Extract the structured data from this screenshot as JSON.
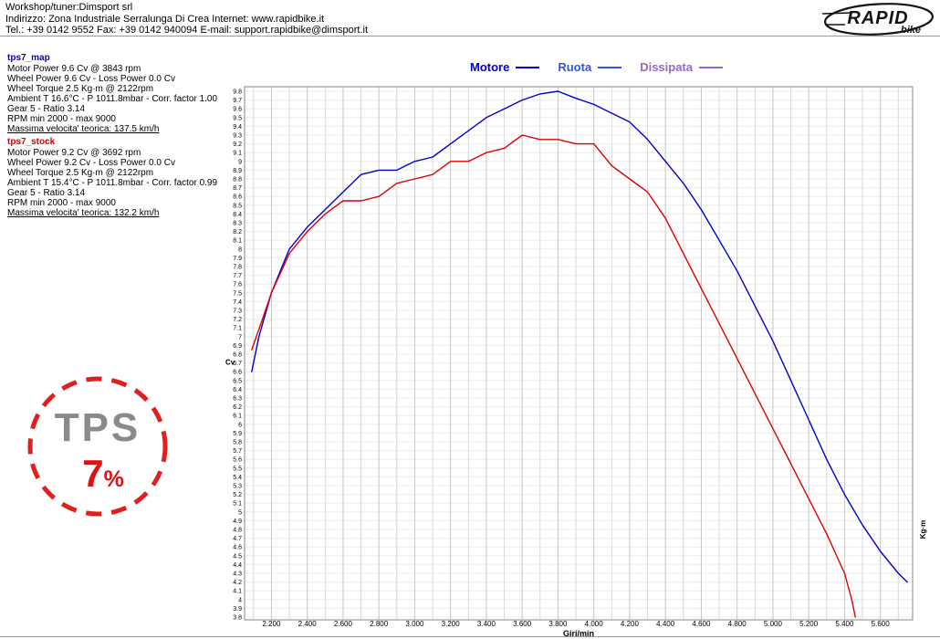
{
  "header": {
    "line1": "Workshop/tuner:Dimsport srl",
    "line2": "Indirizzo: Zona Industriale Serralunga Di Crea Internet: www.rapidbike.it",
    "line3": "Tel.: +39 0142 9552 Fax: +39 0142 940094 E-mail: support.rapidbike@dimsport.it"
  },
  "logo": {
    "line1": "RAPID",
    "line2": "bike"
  },
  "legend": [
    {
      "label": "Motore",
      "color": "#0000c8"
    },
    {
      "label": "Ruota",
      "color": "#3355dd"
    },
    {
      "label": "Dissipata",
      "color": "#9966cc"
    }
  ],
  "runs": [
    {
      "name": "tps7_map",
      "color": "#0000d0",
      "lines": [
        "Motor Power 9.6 Cv  @ 3843 rpm",
        "Wheel Power 9.6 Cv - Loss Power 0.0 Cv",
        "Wheel Torque 2.5 Kg·m  @ 2122rpm",
        "Ambient T 16.6°C - P 1011.8mbar - Corr. factor 1.00",
        "Gear 5 - Ratio 3.14",
        "RPM min 2000 - max 9000"
      ],
      "max_speed": "Massima velocita' teorica: 137.5 km/h"
    },
    {
      "name": "tps7_stock",
      "color": "#e00000",
      "lines": [
        "Motor Power 9.2 Cv  @ 3692 rpm",
        "Wheel Power 9.2 Cv - Loss Power 0.0 Cv",
        "Wheel Torque 2.5 Kg·m  @ 2122rpm",
        "Ambient T 15.4°C - P 1011.8mbar - Corr. factor 0.99",
        "Gear 5 - Ratio 3.14",
        "RPM min 2000 - max 9000"
      ],
      "max_speed": "Massima velocita' teorica: 132.2 km/h"
    }
  ],
  "tps_badge": {
    "label": "TPS",
    "value": "7",
    "percent": "%",
    "circle_color": "#e02020",
    "label_color": "#8a8a8a",
    "value_color": "#dd1111"
  },
  "chart_data": {
    "type": "line",
    "title": "",
    "x_axis": {
      "label": "Giri/min",
      "min": 2050,
      "max": 5780,
      "tick_values": [
        2200,
        2400,
        2600,
        2800,
        3000,
        3200,
        3400,
        3600,
        3800,
        4000,
        4200,
        4400,
        4600,
        4800,
        5000,
        5200,
        5400,
        5600
      ],
      "tick_labels": [
        "2.200",
        "2.400",
        "2.600",
        "2.800",
        "3.000",
        "3.200",
        "3.400",
        "3.600",
        "3.800",
        "4.000",
        "4.200",
        "4.400",
        "4.600",
        "4.800",
        "5.000",
        "5.200",
        "5.400",
        "5.600"
      ],
      "minor_grid_step": 100
    },
    "y_axis": {
      "label": "Cv",
      "min": 3.8,
      "max": 9.8,
      "step": 0.1,
      "tick_labels": [
        "9.8",
        "9.7",
        "9.6",
        "9.5",
        "9.4",
        "9.3",
        "9.2",
        "9.1",
        "9",
        "8.9",
        "8.8",
        "8.7",
        "8.6",
        "8.5",
        "8.4",
        "8.3",
        "8.2",
        "8.1",
        "8",
        "7.9",
        "7.8",
        "7.7",
        "7.6",
        "7.5",
        "7.4",
        "7.3",
        "7.2",
        "7.1",
        "7",
        "6.9",
        "6.8",
        "6.7",
        "6.6",
        "6.5",
        "6.4",
        "6.3",
        "6.2",
        "6.1",
        "6",
        "5.9",
        "5.8",
        "5.7",
        "5.6",
        "5.5",
        "5.4",
        "5.3",
        "5.2",
        "5.1",
        "5",
        "4.9",
        "4.8",
        "4.7",
        "4.6",
        "4.5",
        "4.4",
        "4.3",
        "4.2",
        "4.1",
        "4",
        "3.9",
        "3.8"
      ]
    },
    "y2_axis": {
      "label": "Kg·m"
    },
    "grid": true,
    "series": [
      {
        "name": "tps7_map",
        "color": "#0000d0",
        "points": [
          [
            2090,
            6.6
          ],
          [
            2130,
            7.0
          ],
          [
            2200,
            7.5
          ],
          [
            2250,
            7.75
          ],
          [
            2300,
            8.0
          ],
          [
            2400,
            8.25
          ],
          [
            2500,
            8.45
          ],
          [
            2600,
            8.65
          ],
          [
            2700,
            8.85
          ],
          [
            2800,
            8.9
          ],
          [
            2900,
            8.9
          ],
          [
            3000,
            9.0
          ],
          [
            3100,
            9.05
          ],
          [
            3200,
            9.2
          ],
          [
            3300,
            9.35
          ],
          [
            3400,
            9.5
          ],
          [
            3500,
            9.6
          ],
          [
            3600,
            9.7
          ],
          [
            3700,
            9.77
          ],
          [
            3800,
            9.8
          ],
          [
            3900,
            9.72
          ],
          [
            4000,
            9.65
          ],
          [
            4100,
            9.55
          ],
          [
            4200,
            9.45
          ],
          [
            4300,
            9.25
          ],
          [
            4400,
            9.0
          ],
          [
            4500,
            8.75
          ],
          [
            4600,
            8.45
          ],
          [
            4700,
            8.1
          ],
          [
            4800,
            7.75
          ],
          [
            4900,
            7.35
          ],
          [
            5000,
            6.95
          ],
          [
            5100,
            6.5
          ],
          [
            5200,
            6.05
          ],
          [
            5300,
            5.6
          ],
          [
            5400,
            5.2
          ],
          [
            5500,
            4.85
          ],
          [
            5600,
            4.55
          ],
          [
            5700,
            4.3
          ],
          [
            5750,
            4.2
          ]
        ]
      },
      {
        "name": "tps7_stock",
        "color": "#e00000",
        "points": [
          [
            2090,
            6.85
          ],
          [
            2150,
            7.2
          ],
          [
            2200,
            7.5
          ],
          [
            2300,
            7.95
          ],
          [
            2400,
            8.2
          ],
          [
            2500,
            8.4
          ],
          [
            2600,
            8.55
          ],
          [
            2700,
            8.55
          ],
          [
            2800,
            8.6
          ],
          [
            2900,
            8.75
          ],
          [
            3000,
            8.8
          ],
          [
            3100,
            8.85
          ],
          [
            3200,
            9.0
          ],
          [
            3300,
            9.0
          ],
          [
            3400,
            9.1
          ],
          [
            3500,
            9.15
          ],
          [
            3600,
            9.3
          ],
          [
            3700,
            9.25
          ],
          [
            3800,
            9.25
          ],
          [
            3900,
            9.2
          ],
          [
            4000,
            9.2
          ],
          [
            4100,
            8.95
          ],
          [
            4200,
            8.8
          ],
          [
            4300,
            8.65
          ],
          [
            4400,
            8.35
          ],
          [
            4500,
            7.95
          ],
          [
            4600,
            7.55
          ],
          [
            4700,
            7.15
          ],
          [
            4800,
            6.75
          ],
          [
            4900,
            6.35
          ],
          [
            5000,
            5.95
          ],
          [
            5100,
            5.55
          ],
          [
            5200,
            5.15
          ],
          [
            5300,
            4.75
          ],
          [
            5400,
            4.3
          ],
          [
            5440,
            4.0
          ],
          [
            5460,
            3.8
          ]
        ]
      }
    ]
  }
}
